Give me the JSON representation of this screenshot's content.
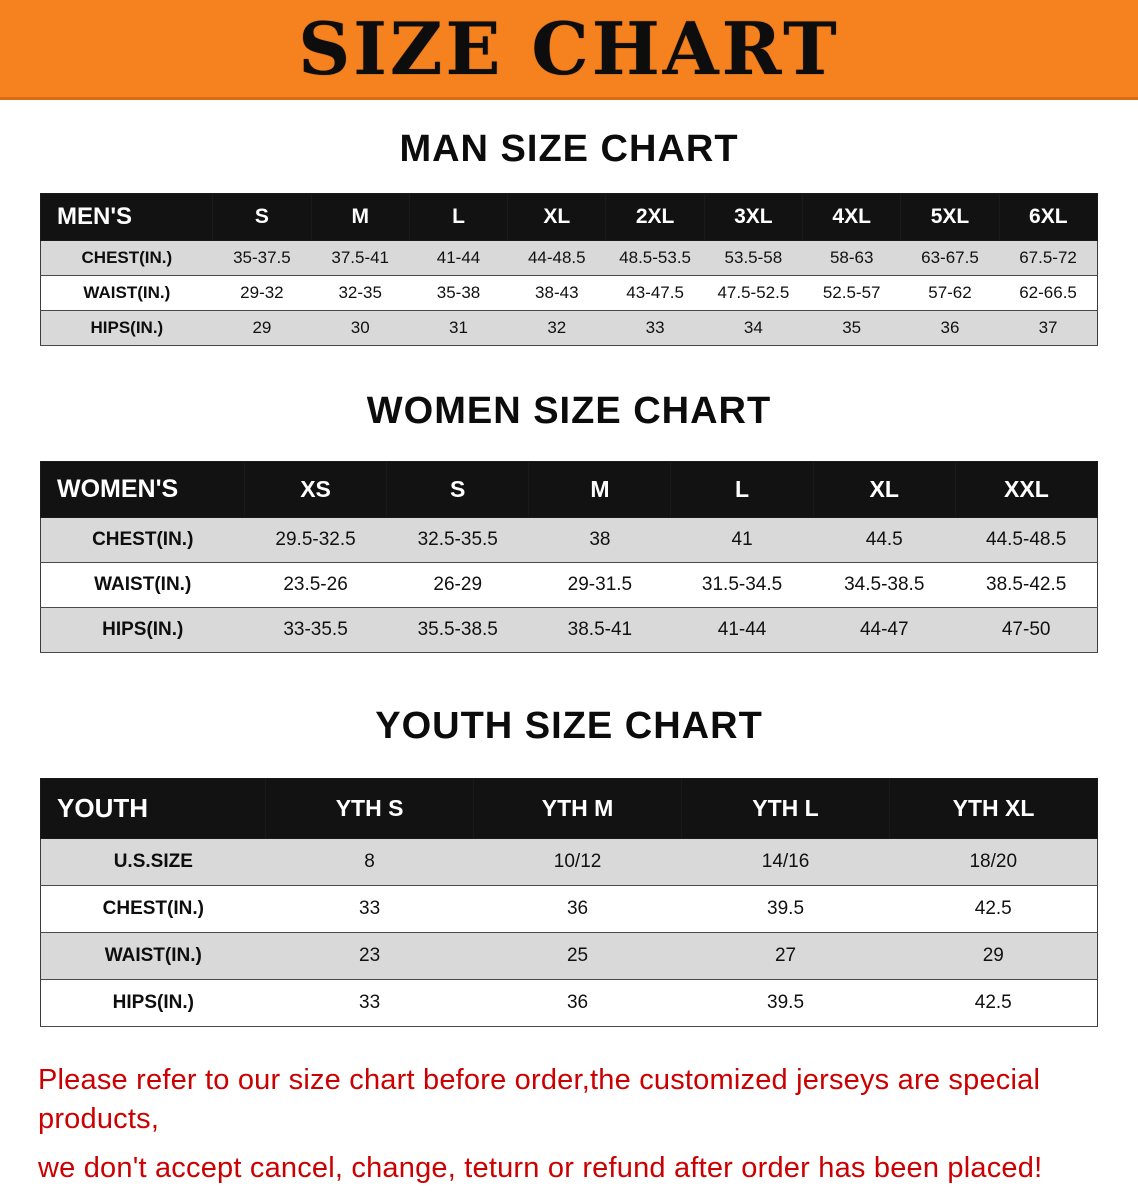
{
  "banner": {
    "title": "SIZE CHART"
  },
  "colors": {
    "banner_bg": "#f5821f",
    "banner_edge": "#d96c10",
    "header_bg": "#121212",
    "shade": "#d9d9d9",
    "footer_color": "#cc0000"
  },
  "chart_data": [
    {
      "type": "table",
      "title": "MAN SIZE CHART",
      "columns": [
        "MEN'S",
        "S",
        "M",
        "L",
        "XL",
        "2XL",
        "3XL",
        "4XL",
        "5XL",
        "6XL"
      ],
      "rows": [
        [
          "CHEST(IN.)",
          "35-37.5",
          "37.5-41",
          "41-44",
          "44-48.5",
          "48.5-53.5",
          "53.5-58",
          "58-63",
          "63-67.5",
          "67.5-72"
        ],
        [
          "WAIST(IN.)",
          "29-32",
          "32-35",
          "35-38",
          "38-43",
          "43-47.5",
          "47.5-52.5",
          "52.5-57",
          "57-62",
          "62-66.5"
        ],
        [
          "HIPS(IN.)",
          "29",
          "30",
          "31",
          "32",
          "33",
          "34",
          "35",
          "36",
          "37"
        ]
      ]
    },
    {
      "type": "table",
      "title": "WOMEN SIZE CHART",
      "columns": [
        "WOMEN'S",
        "XS",
        "S",
        "M",
        "L",
        "XL",
        "XXL"
      ],
      "rows": [
        [
          "CHEST(IN.)",
          "29.5-32.5",
          "32.5-35.5",
          "38",
          "41",
          "44.5",
          "44.5-48.5"
        ],
        [
          "WAIST(IN.)",
          "23.5-26",
          "26-29",
          "29-31.5",
          "31.5-34.5",
          "34.5-38.5",
          "38.5-42.5"
        ],
        [
          "HIPS(IN.)",
          "33-35.5",
          "35.5-38.5",
          "38.5-41",
          "41-44",
          "44-47",
          "47-50"
        ]
      ]
    },
    {
      "type": "table",
      "title": "YOUTH SIZE CHART",
      "columns": [
        "YOUTH",
        "YTH S",
        "YTH M",
        "YTH L",
        "YTH XL"
      ],
      "rows": [
        [
          "U.S.SIZE",
          "8",
          "10/12",
          "14/16",
          "18/20"
        ],
        [
          "CHEST(IN.)",
          "33",
          "36",
          "39.5",
          "42.5"
        ],
        [
          "WAIST(IN.)",
          "23",
          "25",
          "27",
          "29"
        ],
        [
          "HIPS(IN.)",
          "33",
          "36",
          "39.5",
          "42.5"
        ]
      ]
    }
  ],
  "footer": {
    "lines": [
      "Please refer to our size chart before order,the customized jerseys are special products,",
      "we don't accept cancel, change, teturn or refund after order has been placed!"
    ]
  }
}
